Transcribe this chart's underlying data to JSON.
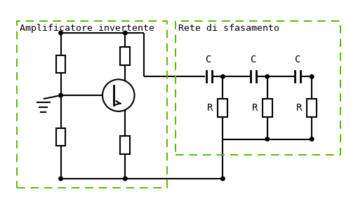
{
  "bg_color": "#ffffff",
  "line_color": "#000000",
  "green_color": "#5cb800",
  "label_amp": "Amplificatore invertente",
  "label_net": "Rete di sfasamento",
  "label_C": "C",
  "label_R": "R",
  "font_family": "monospace",
  "font_size_label": 9.5,
  "font_size_comp": 10
}
